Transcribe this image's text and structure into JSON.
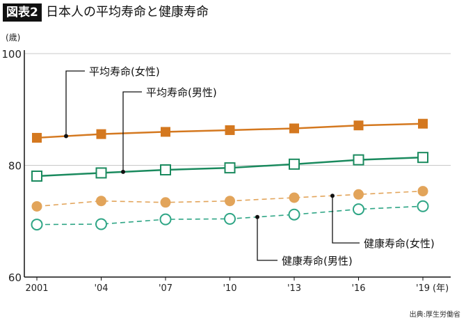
{
  "header": {
    "badge": "図表2",
    "title": "日本人の平均寿命と健康寿命"
  },
  "source": "出典:厚生労働省",
  "chart_data": {
    "type": "line",
    "title": "日本人の平均寿命と健康寿命",
    "ylabel": "(歳)",
    "xlabel": "(年)",
    "ylim": [
      60,
      100
    ],
    "yticks": [
      60,
      80,
      100
    ],
    "grid": true,
    "categories": [
      "2001",
      "'04",
      "'07",
      "'10",
      "'13",
      "'16",
      "'19"
    ],
    "series": [
      {
        "name": "平均寿命(女性)",
        "color": "#d4781f",
        "marker": "filled-square",
        "line": "solid",
        "values": [
          84.93,
          85.59,
          85.99,
          86.3,
          86.61,
          87.14,
          87.45
        ]
      },
      {
        "name": "平均寿命(男性)",
        "color": "#1a8a5e",
        "marker": "open-square",
        "line": "solid",
        "values": [
          78.07,
          78.64,
          79.19,
          79.55,
          80.21,
          80.98,
          81.41
        ]
      },
      {
        "name": "健康寿命(女性)",
        "color": "#e2a45a",
        "marker": "filled-circle",
        "line": "dashed",
        "values": [
          72.65,
          73.62,
          73.36,
          73.62,
          74.21,
          74.79,
          75.38
        ]
      },
      {
        "name": "健康寿命(男性)",
        "color": "#2ea585",
        "marker": "open-circle",
        "line": "dashed",
        "values": [
          69.4,
          69.47,
          70.33,
          70.42,
          71.19,
          72.14,
          72.68
        ]
      }
    ]
  }
}
